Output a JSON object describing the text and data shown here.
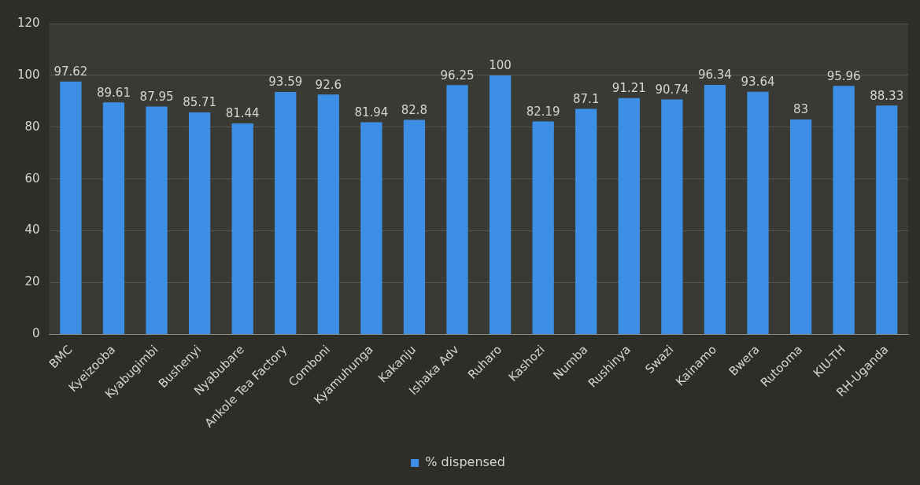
{
  "chart_data": {
    "type": "bar",
    "categories": [
      "BMC",
      "Kyeizooba",
      "Kyabugimbi",
      "Bushenyi",
      "Nyabubare",
      "Ankole Tea Factory",
      "Comboni",
      "Kyamuhunga",
      "Kakanju",
      "Ishaka Adv",
      "Ruharo",
      "Kashozi",
      "Numba",
      "Rushinya",
      "Swazi",
      "Kainamo",
      "Bwera",
      "Rutooma",
      "KIU-TH",
      "RH-Uganda"
    ],
    "series": [
      {
        "name": "% dispensed",
        "color": "#3d8fe6",
        "values": [
          97.62,
          89.61,
          87.95,
          85.71,
          81.44,
          93.59,
          92.6,
          81.94,
          82.8,
          96.25,
          100,
          82.19,
          87.1,
          91.21,
          90.74,
          96.34,
          93.64,
          83,
          95.96,
          88.33
        ]
      }
    ],
    "ylim": [
      0,
      120
    ],
    "yticks": [
      0,
      20,
      40,
      60,
      80,
      100,
      120
    ],
    "grid": "y",
    "legend": "bottom",
    "data_labels": true
  }
}
